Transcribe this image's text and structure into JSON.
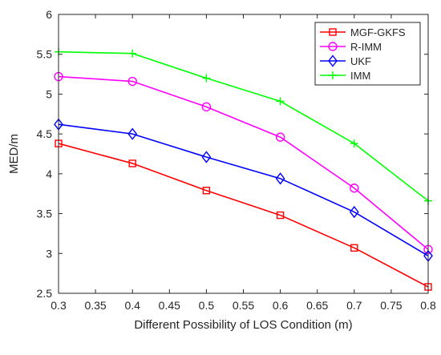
{
  "chart_data": {
    "type": "line",
    "title": "",
    "xlabel": "Different Possibility of LOS Condition (m)",
    "ylabel": "MED/m",
    "x": [
      0.3,
      0.4,
      0.5,
      0.6,
      0.7,
      0.8
    ],
    "xlim": [
      0.3,
      0.8
    ],
    "ylim": [
      2.5,
      6
    ],
    "xticks": [
      "0.3",
      "0.35",
      "0.4",
      "0.45",
      "0.5",
      "0.55",
      "0.6",
      "0.65",
      "0.7",
      "0.75",
      "0.8"
    ],
    "yticks": [
      "2.5",
      "3",
      "3.5",
      "4",
      "4.5",
      "5",
      "5.5",
      "6"
    ],
    "grid": false,
    "legend_position": "top-right",
    "series": [
      {
        "name": "MGF-GKFS",
        "color": "#ff0000",
        "marker": "square",
        "values": [
          4.38,
          4.13,
          3.79,
          3.48,
          3.07,
          2.58
        ]
      },
      {
        "name": "R-IMM",
        "color": "#ff00ff",
        "marker": "circle",
        "values": [
          5.22,
          5.16,
          4.84,
          4.46,
          3.82,
          3.05
        ]
      },
      {
        "name": "UKF",
        "color": "#0000ff",
        "marker": "diamond",
        "values": [
          4.62,
          4.5,
          4.21,
          3.94,
          3.52,
          2.97
        ]
      },
      {
        "name": "IMM",
        "color": "#00ff00",
        "marker": "plus",
        "values": [
          5.53,
          5.51,
          5.2,
          4.91,
          4.38,
          3.66
        ]
      }
    ]
  }
}
